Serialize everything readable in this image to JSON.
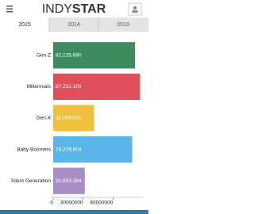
{
  "header": {
    "brand_light": "INDY",
    "brand_bold": "STAR"
  },
  "tabs": [
    "2015",
    "2014",
    "2013"
  ],
  "chart_data": {
    "type": "barh",
    "categories": [
      "Gen Z",
      "Millennials",
      "Gen X",
      "Baby Boomers",
      "Silent Generation"
    ],
    "values": [
      82125690,
      87251100,
      41069042,
      79279604,
      31693384
    ],
    "value_labels": [
      "82,125,690",
      "87,251,100",
      "41,069,042",
      "79,279,604",
      "31,693,384"
    ],
    "colors": [
      "#3d8b5e",
      "#e0505a",
      "#f0c13c",
      "#5ab6e8",
      "#a98dc6"
    ],
    "xlim": [
      0,
      90000000
    ],
    "xticks": [
      0,
      30000000,
      60000000
    ]
  }
}
